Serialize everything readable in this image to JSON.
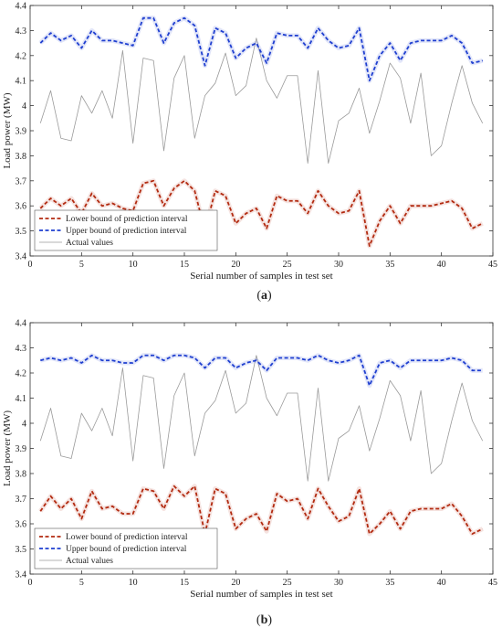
{
  "chart_data": [
    {
      "type": "line",
      "title": "",
      "xlabel": "Serial number of samples in test set",
      "ylabel": "Load power (MW)",
      "xlim": [
        0,
        45
      ],
      "ylim": [
        3.4,
        4.4
      ],
      "xticks": [
        0,
        5,
        10,
        15,
        20,
        25,
        30,
        35,
        40,
        45
      ],
      "yticks": [
        3.4,
        3.5,
        3.6,
        3.7,
        3.8,
        3.9,
        4,
        4.1,
        4.2,
        4.3,
        4.4
      ],
      "grid": false,
      "legend_position": "bottom-left",
      "caption_open": "(",
      "caption_letter": "a",
      "caption_close": ")",
      "x": [
        1,
        2,
        3,
        4,
        5,
        6,
        7,
        8,
        9,
        10,
        11,
        12,
        13,
        14,
        15,
        16,
        17,
        18,
        19,
        20,
        21,
        22,
        23,
        24,
        25,
        26,
        27,
        28,
        29,
        30,
        31,
        32,
        33,
        34,
        35,
        36,
        37,
        38,
        39,
        40,
        41,
        42,
        43,
        44
      ],
      "series": [
        {
          "name": "Lower bound of prediction interval",
          "color": "#b22a10",
          "style": "dashed",
          "values": [
            3.59,
            3.63,
            3.6,
            3.63,
            3.57,
            3.65,
            3.6,
            3.61,
            3.59,
            3.58,
            3.69,
            3.7,
            3.6,
            3.67,
            3.7,
            3.66,
            3.5,
            3.66,
            3.64,
            3.53,
            3.57,
            3.59,
            3.51,
            3.64,
            3.62,
            3.62,
            3.57,
            3.66,
            3.6,
            3.57,
            3.58,
            3.66,
            3.44,
            3.54,
            3.6,
            3.53,
            3.6,
            3.6,
            3.6,
            3.61,
            3.62,
            3.59,
            3.51,
            3.53
          ]
        },
        {
          "name": "Upper bound of prediction interval",
          "color": "#1f3fd0",
          "style": "dashed",
          "values": [
            4.25,
            4.29,
            4.26,
            4.28,
            4.23,
            4.3,
            4.26,
            4.26,
            4.25,
            4.24,
            4.35,
            4.35,
            4.25,
            4.33,
            4.35,
            4.32,
            4.16,
            4.31,
            4.29,
            4.19,
            4.23,
            4.25,
            4.17,
            4.29,
            4.28,
            4.28,
            4.23,
            4.31,
            4.26,
            4.23,
            4.24,
            4.31,
            4.1,
            4.2,
            4.25,
            4.18,
            4.25,
            4.26,
            4.26,
            4.26,
            4.28,
            4.25,
            4.17,
            4.18
          ]
        },
        {
          "name": "Actual values",
          "color": "#9a9a9a",
          "style": "solid",
          "values": [
            3.93,
            4.06,
            3.87,
            3.86,
            4.04,
            3.97,
            4.06,
            3.95,
            4.22,
            3.85,
            4.19,
            4.18,
            3.82,
            4.11,
            4.2,
            3.87,
            4.04,
            4.09,
            4.21,
            4.04,
            4.08,
            4.27,
            4.1,
            4.03,
            4.12,
            4.12,
            3.77,
            4.14,
            3.77,
            3.94,
            3.97,
            4.07,
            3.89,
            4.02,
            4.17,
            4.11,
            3.93,
            4.13,
            3.8,
            3.84,
            4.01,
            4.16,
            4.01,
            3.93
          ]
        }
      ]
    },
    {
      "type": "line",
      "title": "",
      "xlabel": "Serial number of samples in test set",
      "ylabel": "Load power (MW)",
      "xlim": [
        0,
        45
      ],
      "ylim": [
        3.4,
        4.4
      ],
      "xticks": [
        0,
        5,
        10,
        15,
        20,
        25,
        30,
        35,
        40,
        45
      ],
      "yticks": [
        3.4,
        3.5,
        3.6,
        3.7,
        3.8,
        3.9,
        4,
        4.1,
        4.2,
        4.3,
        4.4
      ],
      "grid": false,
      "legend_position": "bottom-left",
      "caption_open": "(",
      "caption_letter": "b",
      "caption_close": ")",
      "x": [
        1,
        2,
        3,
        4,
        5,
        6,
        7,
        8,
        9,
        10,
        11,
        12,
        13,
        14,
        15,
        16,
        17,
        18,
        19,
        20,
        21,
        22,
        23,
        24,
        25,
        26,
        27,
        28,
        29,
        30,
        31,
        32,
        33,
        34,
        35,
        36,
        37,
        38,
        39,
        40,
        41,
        42,
        43,
        44
      ],
      "series": [
        {
          "name": "Lower bound of prediction interval",
          "color": "#b22a10",
          "style": "dashed",
          "values": [
            3.65,
            3.71,
            3.66,
            3.7,
            3.62,
            3.73,
            3.66,
            3.67,
            3.64,
            3.64,
            3.74,
            3.73,
            3.66,
            3.75,
            3.71,
            3.75,
            3.56,
            3.74,
            3.72,
            3.58,
            3.62,
            3.64,
            3.57,
            3.72,
            3.69,
            3.7,
            3.62,
            3.74,
            3.67,
            3.61,
            3.63,
            3.74,
            3.56,
            3.6,
            3.65,
            3.58,
            3.65,
            3.66,
            3.66,
            3.66,
            3.68,
            3.63,
            3.56,
            3.58
          ]
        },
        {
          "name": "Upper bound of prediction interval",
          "color": "#1f3fd0",
          "style": "dashed",
          "values": [
            4.25,
            4.26,
            4.25,
            4.26,
            4.24,
            4.27,
            4.25,
            4.25,
            4.24,
            4.24,
            4.27,
            4.27,
            4.25,
            4.27,
            4.27,
            4.26,
            4.22,
            4.26,
            4.26,
            4.22,
            4.24,
            4.25,
            4.21,
            4.26,
            4.26,
            4.26,
            4.25,
            4.27,
            4.25,
            4.24,
            4.25,
            4.27,
            4.15,
            4.24,
            4.25,
            4.22,
            4.25,
            4.25,
            4.25,
            4.25,
            4.26,
            4.25,
            4.21,
            4.21
          ]
        },
        {
          "name": "Actual values",
          "color": "#9a9a9a",
          "style": "solid",
          "values": [
            3.93,
            4.06,
            3.87,
            3.86,
            4.04,
            3.97,
            4.06,
            3.95,
            4.22,
            3.85,
            4.19,
            4.18,
            3.82,
            4.11,
            4.2,
            3.87,
            4.04,
            4.09,
            4.21,
            4.04,
            4.08,
            4.27,
            4.1,
            4.03,
            4.12,
            4.12,
            3.77,
            4.14,
            3.77,
            3.94,
            3.97,
            4.07,
            3.89,
            4.02,
            4.17,
            4.11,
            3.93,
            4.13,
            3.8,
            3.84,
            4.01,
            4.16,
            4.01,
            3.93
          ]
        }
      ]
    }
  ]
}
